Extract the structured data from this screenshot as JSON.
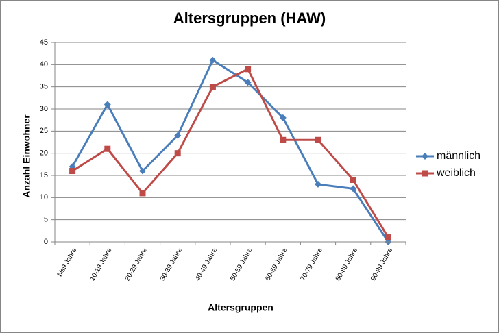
{
  "chart_data": {
    "type": "line",
    "title": "Altersgruppen (HAW)",
    "x_label": "Altersgruppen",
    "y_label": "Anzahl Einwohner",
    "categories": [
      "bis9 Jahre",
      "10-19 Jahre",
      "20-29 Jahre",
      "30-39 Jahre",
      "40-49 Jahre",
      "50-59 Jahre",
      "60-69 Jahre",
      "70-79 Jahre",
      "80-89 Jahre",
      "90-99 Jahre"
    ],
    "series": [
      {
        "name": "männlich",
        "color": "#4a7ebb",
        "values": [
          17,
          31,
          16,
          24,
          41,
          36,
          28,
          13,
          12,
          0
        ]
      },
      {
        "name": "weiblich",
        "color": "#be4b48",
        "values": [
          16,
          21,
          11,
          20,
          35,
          39,
          23,
          23,
          14,
          1
        ]
      }
    ],
    "ylim": [
      0,
      45
    ],
    "yticks": [
      0,
      5,
      10,
      15,
      20,
      25,
      30,
      35,
      40,
      45
    ],
    "grid": true,
    "legend": "right"
  }
}
